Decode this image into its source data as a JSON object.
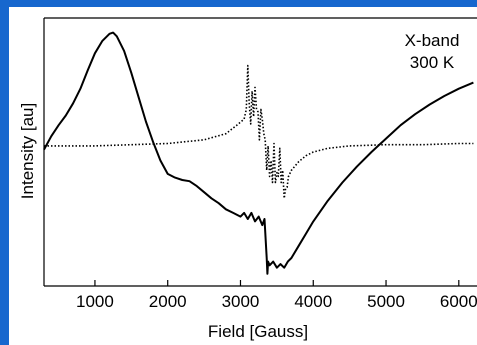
{
  "colors": {
    "border": "#1767ce",
    "series": "#000000",
    "background": "#ffffff"
  },
  "annotation": {
    "line1": "X-band",
    "line2": "300 K"
  },
  "chart_data": {
    "type": "line",
    "xlabel": "Field [Gauss]",
    "ylabel": "Intensity [au]",
    "xlim": [
      300,
      6250
    ],
    "ylim": [
      -1.15,
      1.05
    ],
    "xticks": [
      1000,
      2000,
      3000,
      4000,
      5000,
      6000
    ],
    "xtick_labels": [
      "1000",
      "2000",
      "3000",
      "4000",
      "5000",
      "6000"
    ],
    "grid": false,
    "legend": "none",
    "series": [
      {
        "style": "solid",
        "x": [
          300,
          400,
          500,
          600,
          700,
          800,
          900,
          1000,
          1100,
          1200,
          1250,
          1300,
          1400,
          1500,
          1600,
          1700,
          1800,
          1900,
          2000,
          2100,
          2200,
          2300,
          2400,
          2500,
          2600,
          2700,
          2800,
          2900,
          3000,
          3050,
          3100,
          3150,
          3200,
          3250,
          3300,
          3330,
          3360,
          3370,
          3380,
          3400,
          3450,
          3500,
          3550,
          3600,
          3650,
          3700,
          3800,
          3900,
          4000,
          4200,
          4400,
          4600,
          4800,
          5000,
          5200,
          5400,
          5600,
          5800,
          6000,
          6200
        ],
        "y": [
          -0.03,
          0.08,
          0.17,
          0.25,
          0.35,
          0.47,
          0.62,
          0.76,
          0.86,
          0.92,
          0.93,
          0.9,
          0.78,
          0.6,
          0.4,
          0.2,
          0.03,
          -0.12,
          -0.23,
          -0.26,
          -0.28,
          -0.29,
          -0.33,
          -0.38,
          -0.43,
          -0.47,
          -0.52,
          -0.55,
          -0.58,
          -0.55,
          -0.6,
          -0.55,
          -0.62,
          -0.58,
          -0.65,
          -0.6,
          -0.92,
          -1.05,
          -0.95,
          -0.98,
          -0.95,
          -1.0,
          -0.97,
          -1.0,
          -0.95,
          -0.92,
          -0.82,
          -0.72,
          -0.62,
          -0.45,
          -0.3,
          -0.17,
          -0.05,
          0.06,
          0.17,
          0.26,
          0.34,
          0.41,
          0.47,
          0.52
        ]
      },
      {
        "style": "dotted",
        "x": [
          300,
          1000,
          2000,
          2500,
          2800,
          2950,
          3050,
          3080,
          3100,
          3120,
          3140,
          3160,
          3180,
          3200,
          3220,
          3240,
          3260,
          3280,
          3300,
          3320,
          3340,
          3360,
          3380,
          3400,
          3420,
          3440,
          3460,
          3480,
          3500,
          3520,
          3540,
          3560,
          3580,
          3600,
          3620,
          3640,
          3660,
          3700,
          3800,
          3900,
          4000,
          4200,
          4500,
          5000,
          5500,
          6000,
          6200
        ],
        "y": [
          0.0,
          0.0,
          0.02,
          0.05,
          0.1,
          0.17,
          0.22,
          0.3,
          0.66,
          0.35,
          0.18,
          0.45,
          0.24,
          0.48,
          0.3,
          0.28,
          0.05,
          0.3,
          0.22,
          0.1,
          0.05,
          -0.2,
          0.0,
          -0.25,
          -0.12,
          -0.3,
          0.02,
          -0.3,
          -0.22,
          -0.25,
          -0.02,
          -0.3,
          -0.2,
          -0.43,
          -0.35,
          -0.34,
          -0.25,
          -0.2,
          -0.13,
          -0.08,
          -0.05,
          -0.02,
          0.0,
          0.01,
          0.01,
          0.02,
          0.02
        ]
      }
    ]
  }
}
